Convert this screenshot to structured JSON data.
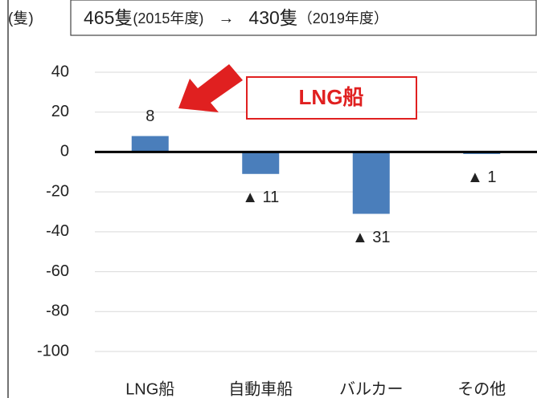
{
  "chart_data": {
    "type": "bar",
    "title": [
      "465隻",
      "(2015年度)",
      "→",
      "430隻",
      "（2019年度）"
    ],
    "y_label": "(隻)",
    "annotation": "LNG船",
    "categories": [
      "LNG船",
      "自動車船",
      "バルカー",
      "その他"
    ],
    "values": [
      8,
      -11,
      -31,
      -1
    ],
    "value_labels": [
      "8",
      "▲ 11",
      "▲ 31",
      "▲ 1"
    ],
    "color": "#4a7ebb",
    "ylim": [
      -100,
      40
    ],
    "yticks": [
      40,
      20,
      0,
      -20,
      -40,
      -60,
      -80,
      -100
    ],
    "grid": true
  }
}
